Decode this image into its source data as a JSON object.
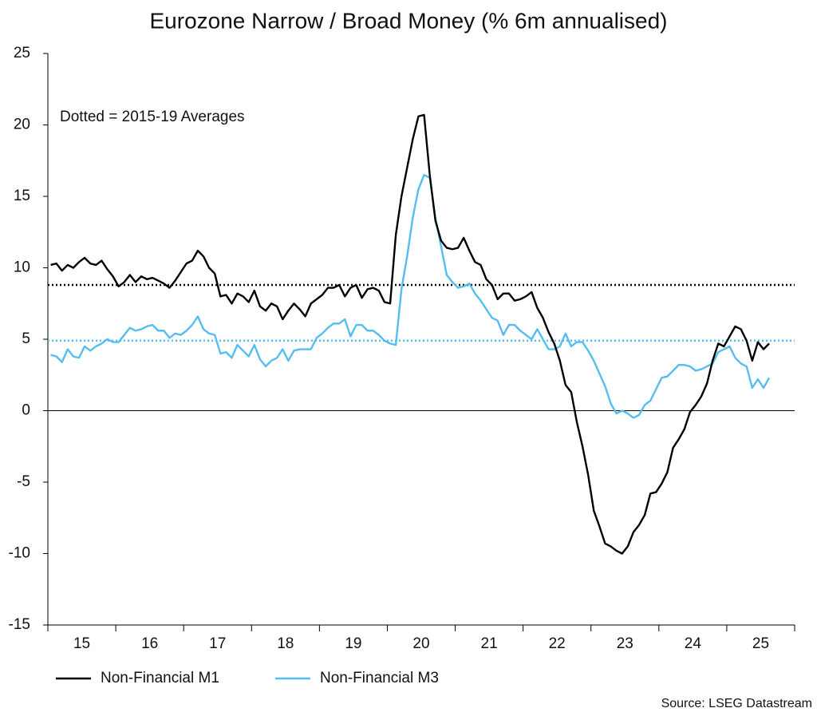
{
  "chart_data": {
    "type": "line",
    "title": "Eurozone Narrow / Broad Money (% 6m annualised)",
    "annotation": "Dotted = 2015-19 Averages",
    "source": "Source: LSEG Datastream",
    "categories": [
      null,
      null,
      null,
      null,
      null,
      null,
      "15",
      null,
      null,
      null,
      null,
      null,
      null,
      null,
      null,
      null,
      null,
      null,
      "16",
      null,
      null,
      null,
      null,
      null,
      null,
      null,
      null,
      null,
      null,
      null,
      "17",
      null,
      null,
      null,
      null,
      null,
      null,
      null,
      null,
      null,
      null,
      null,
      "18",
      null,
      null,
      null,
      null,
      null,
      null,
      null,
      null,
      null,
      null,
      null,
      "19",
      null,
      null,
      null,
      null,
      null,
      null,
      null,
      null,
      null,
      null,
      null,
      "20",
      null,
      null,
      null,
      null,
      null,
      null,
      null,
      null,
      null,
      null,
      null,
      "21",
      null,
      null,
      null,
      null,
      null,
      null,
      null,
      null,
      null,
      null,
      null,
      "22",
      null,
      null,
      null,
      null,
      null,
      null,
      null,
      null,
      null,
      null,
      null,
      "23",
      null,
      null,
      null,
      null,
      null,
      null,
      null,
      null,
      null,
      null,
      null,
      "24",
      null,
      null,
      null,
      null,
      null,
      null,
      null,
      null,
      null,
      null,
      null,
      "25",
      null
    ],
    "series": [
      {
        "name": "Non-Financial M1",
        "color": "#000000",
        "values": [
          10.2,
          10.3,
          9.8,
          10.2,
          10.0,
          10.4,
          10.7,
          10.3,
          10.2,
          10.5,
          9.9,
          9.4,
          8.7,
          9.0,
          9.5,
          9.0,
          9.4,
          9.2,
          9.3,
          9.1,
          8.9,
          8.6,
          9.1,
          9.7,
          10.3,
          10.5,
          11.2,
          10.8,
          10.0,
          9.6,
          8.0,
          8.1,
          7.5,
          8.2,
          8.0,
          7.6,
          8.4,
          7.3,
          7.0,
          7.5,
          7.3,
          6.4,
          7.0,
          7.5,
          7.1,
          6.6,
          7.5,
          7.8,
          8.1,
          8.6,
          8.6,
          8.8,
          8.0,
          8.6,
          8.8,
          7.9,
          8.5,
          8.6,
          8.4,
          7.6,
          7.5,
          12.3,
          15.0,
          17.0,
          19.0,
          20.6,
          20.7,
          16.5,
          13.3,
          11.9,
          11.4,
          11.3,
          11.4,
          12.1,
          11.2,
          10.4,
          10.2,
          9.2,
          8.8,
          7.8,
          8.2,
          8.2,
          7.7,
          7.8,
          8.0,
          8.3,
          7.2,
          6.5,
          5.5,
          4.7,
          3.5,
          1.8,
          1.3,
          -0.8,
          -2.5,
          -4.5,
          -7.0,
          -8.1,
          -9.3,
          -9.5,
          -9.8,
          -10.0,
          -9.5,
          -8.5,
          -8.0,
          -7.3,
          -5.8,
          -5.7,
          -5.1,
          -4.3,
          -2.6,
          -2.0,
          -1.3,
          -0.1,
          0.4,
          1.0,
          1.9,
          3.5,
          4.7,
          4.5,
          5.2,
          5.9,
          5.7,
          4.9,
          3.5,
          4.8,
          4.3,
          4.7
        ]
      },
      {
        "name": "Non-Financial M3",
        "color": "#56bdf2",
        "values": [
          3.9,
          3.8,
          3.4,
          4.3,
          3.8,
          3.7,
          4.5,
          4.2,
          4.5,
          4.7,
          5.0,
          4.8,
          4.8,
          5.3,
          5.8,
          5.6,
          5.7,
          5.9,
          6.0,
          5.6,
          5.6,
          5.1,
          5.4,
          5.3,
          5.6,
          6.0,
          6.6,
          5.7,
          5.4,
          5.3,
          4.0,
          4.1,
          3.7,
          4.6,
          4.2,
          3.8,
          4.6,
          3.6,
          3.1,
          3.5,
          3.7,
          4.3,
          3.5,
          4.2,
          4.3,
          4.3,
          4.3,
          5.1,
          5.4,
          5.8,
          6.1,
          6.1,
          6.4,
          5.2,
          6.0,
          6.0,
          5.6,
          5.6,
          5.3,
          4.9,
          4.7,
          4.6,
          8.5,
          10.8,
          13.5,
          15.5,
          16.5,
          16.3,
          13.5,
          11.5,
          9.5,
          9.0,
          8.6,
          8.7,
          8.9,
          8.2,
          7.7,
          7.1,
          6.5,
          6.3,
          5.3,
          6.0,
          6.0,
          5.6,
          5.3,
          5.0,
          5.7,
          5.0,
          4.3,
          4.3,
          4.5,
          5.4,
          4.5,
          4.8,
          4.8,
          4.2,
          3.5,
          2.6,
          1.7,
          0.5,
          -0.2,
          0.0,
          -0.2,
          -0.5,
          -0.3,
          0.4,
          0.7,
          1.5,
          2.3,
          2.4,
          2.8,
          3.2,
          3.2,
          3.1,
          2.8,
          2.9,
          3.1,
          3.3,
          4.1,
          4.3,
          4.5,
          3.7,
          3.3,
          3.1,
          1.6,
          2.2,
          1.6,
          2.3
        ]
      }
    ],
    "reference_lines": [
      {
        "value": 8.8,
        "color": "#000000"
      },
      {
        "value": 4.9,
        "color": "#56bdf2"
      }
    ],
    "ylim": [
      -15,
      25
    ],
    "yticks": [
      -15,
      -10,
      -5,
      0,
      5,
      10,
      15,
      20,
      25
    ]
  }
}
